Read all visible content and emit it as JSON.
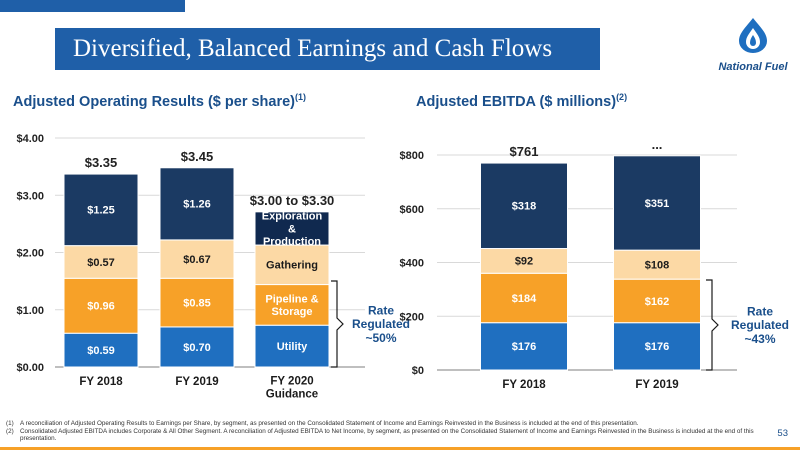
{
  "slide": {
    "title": "Diversified, Balanced Earnings and Cash Flows",
    "logo_text": "National Fuel",
    "page_number": "53",
    "colors": {
      "brand_blue": "#1f5fa8",
      "navy": "#1b3a63",
      "tan": "#fcd9a5",
      "orange": "#f7a128",
      "utility_blue": "#1f6fc0"
    },
    "footnotes": [
      {
        "num": "(1)",
        "text": "A reconciliation of Adjusted Operating Results to Earnings per Share, by segment, as presented on the Consolidated Statement of Income and Earnings Reinvested in the Business is included at the end of this presentation."
      },
      {
        "num": "(2)",
        "text": "Consolidated Adjusted EBITDA includes Corporate & All Other Segment. A reconciliation of Adjusted EBITDA to Net Income, by segment, as presented on the Consolidated Statement of Income and Earnings Reinvested in the Business is included at the end of this presentation."
      }
    ]
  },
  "chart_data": [
    {
      "type": "bar",
      "stacked": true,
      "title": "Adjusted Operating Results ($ per share)",
      "title_sup": "(1)",
      "categories": [
        "FY 2018",
        "FY 2019",
        "FY 2020 Guidance"
      ],
      "series": [
        {
          "name": "Utility",
          "color": "#1f6fc0",
          "values": [
            0.59,
            0.7,
            null
          ],
          "labels": [
            "$0.59",
            "$0.70",
            "Utility"
          ]
        },
        {
          "name": "Pipeline & Storage",
          "color": "#f7a128",
          "values": [
            0.96,
            0.85,
            null
          ],
          "labels": [
            "$0.96",
            "$0.85",
            "Pipeline & Storage"
          ]
        },
        {
          "name": "Gathering",
          "color": "#fcd9a5",
          "values": [
            0.57,
            0.67,
            null
          ],
          "labels": [
            "$0.57",
            "$0.67",
            "Gathering"
          ]
        },
        {
          "name": "Exploration & Production",
          "color": "#1b3a63",
          "values": [
            1.25,
            1.26,
            null
          ],
          "labels": [
            "$1.25",
            "$1.26",
            "Exploration & Production"
          ]
        }
      ],
      "totals": [
        "$3.35",
        "$3.45",
        "$3.00 to $3.30"
      ],
      "ylim": [
        0,
        4
      ],
      "yticks": [
        "$0.00",
        "$1.00",
        "$2.00",
        "$3.00",
        "$4.00"
      ],
      "grid": true,
      "annotation": {
        "text": "Rate Regulated ~50%"
      }
    },
    {
      "type": "bar",
      "stacked": true,
      "title": "Adjusted EBITDA ($ millions)",
      "title_sup": "(2)",
      "categories": [
        "FY 2018",
        "FY 2019"
      ],
      "series": [
        {
          "name": "Utility",
          "color": "#1f6fc0",
          "values": [
            176,
            176
          ],
          "labels": [
            "$176",
            "$176"
          ]
        },
        {
          "name": "Pipeline & Storage",
          "color": "#f7a128",
          "values": [
            184,
            162
          ],
          "labels": [
            "$184",
            "$162"
          ]
        },
        {
          "name": "Gathering",
          "color": "#fcd9a5",
          "values": [
            92,
            108
          ],
          "labels": [
            "$92",
            "$108"
          ]
        },
        {
          "name": "Exploration & Production",
          "color": "#1b3a63",
          "values": [
            318,
            351
          ],
          "labels": [
            "$318",
            "$351"
          ]
        }
      ],
      "totals": [
        "$761",
        "..."
      ],
      "ylim": [
        0,
        800
      ],
      "yticks": [
        "$0",
        "$200",
        "$400",
        "$600",
        "$800"
      ],
      "grid": true,
      "annotation": {
        "text": "Rate Regulated ~43%"
      }
    }
  ]
}
